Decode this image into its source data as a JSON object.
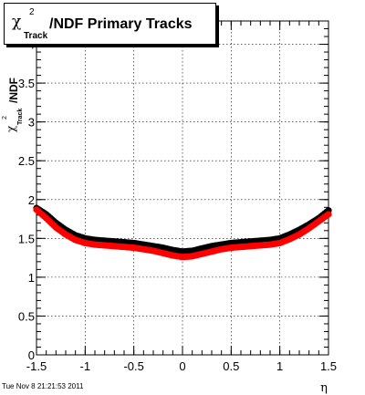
{
  "title": {
    "symbol": "χ",
    "superscript": "2",
    "subscript": "Track",
    "rest": "/NDF  Primary Tracks"
  },
  "ylabel": {
    "symbol": "χ",
    "superscript": "2",
    "subscript": "Track",
    "rest": "/NDF"
  },
  "footer": "Tue Nov  8 21:21:53 2011",
  "chart_data": {
    "type": "scatter",
    "xlabel": "η",
    "xlim": [
      -1.5,
      1.5
    ],
    "ylim": [
      0,
      4.3
    ],
    "x_ticks": [
      "-1.5",
      "-1",
      "-0.5",
      "0",
      "0.5",
      "1",
      "1.5"
    ],
    "y_ticks": [
      "0",
      "0.5",
      "1",
      "1.5",
      "2",
      "2.5",
      "3",
      "3.5",
      "4"
    ],
    "grid": true,
    "series": [
      {
        "color": "#000000",
        "x": [
          -1.5,
          -1.4,
          -1.3,
          -1.2,
          -1.1,
          -1.0,
          -0.9,
          -0.8,
          -0.7,
          -0.6,
          -0.5,
          -0.4,
          -0.3,
          -0.2,
          -0.1,
          0.0,
          0.1,
          0.2,
          0.3,
          0.4,
          0.5,
          0.6,
          0.7,
          0.8,
          0.9,
          1.0,
          1.1,
          1.2,
          1.3,
          1.4,
          1.5
        ],
        "y": [
          1.89,
          1.81,
          1.7,
          1.61,
          1.54,
          1.5,
          1.48,
          1.47,
          1.46,
          1.45,
          1.44,
          1.42,
          1.4,
          1.38,
          1.35,
          1.33,
          1.34,
          1.37,
          1.4,
          1.42,
          1.44,
          1.45,
          1.46,
          1.47,
          1.48,
          1.5,
          1.55,
          1.61,
          1.68,
          1.76,
          1.86
        ]
      },
      {
        "color": "#ff0000",
        "x": [
          -1.5,
          -1.4,
          -1.3,
          -1.2,
          -1.1,
          -1.0,
          -0.9,
          -0.8,
          -0.7,
          -0.6,
          -0.5,
          -0.4,
          -0.3,
          -0.2,
          -0.1,
          0.0,
          0.1,
          0.2,
          0.3,
          0.4,
          0.5,
          0.6,
          0.7,
          0.8,
          0.9,
          1.0,
          1.1,
          1.2,
          1.3,
          1.4,
          1.5
        ],
        "y": [
          1.87,
          1.76,
          1.64,
          1.55,
          1.48,
          1.44,
          1.42,
          1.41,
          1.4,
          1.39,
          1.38,
          1.36,
          1.34,
          1.31,
          1.28,
          1.26,
          1.27,
          1.3,
          1.33,
          1.36,
          1.38,
          1.39,
          1.4,
          1.41,
          1.42,
          1.44,
          1.49,
          1.55,
          1.63,
          1.72,
          1.81
        ]
      }
    ]
  }
}
